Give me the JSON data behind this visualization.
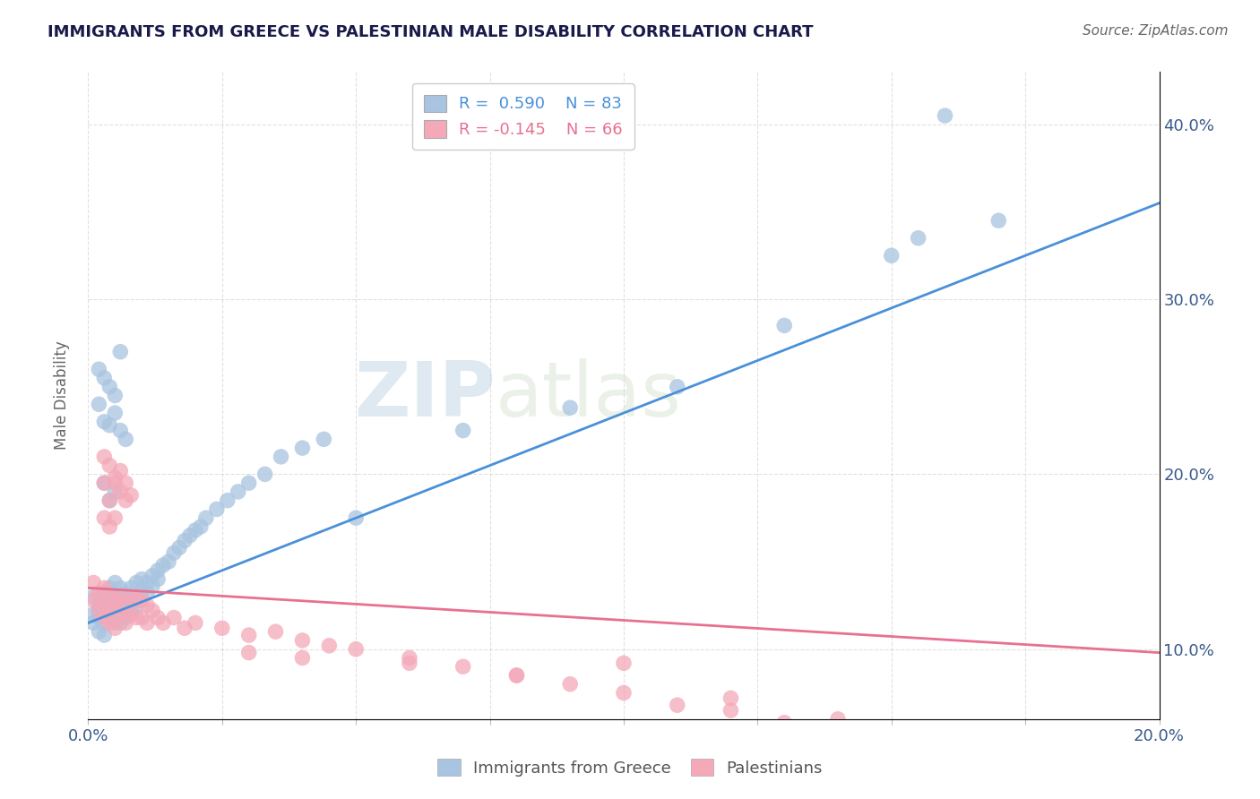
{
  "title": "IMMIGRANTS FROM GREECE VS PALESTINIAN MALE DISABILITY CORRELATION CHART",
  "source": "Source: ZipAtlas.com",
  "ylabel": "Male Disability",
  "legend_labels": [
    "Immigrants from Greece",
    "Palestinians"
  ],
  "r_blue": 0.59,
  "n_blue": 83,
  "r_pink": -0.145,
  "n_pink": 66,
  "xlim": [
    0.0,
    0.2
  ],
  "ylim": [
    0.06,
    0.43
  ],
  "xticks": [
    0.0,
    0.025,
    0.05,
    0.075,
    0.1,
    0.125,
    0.15,
    0.175,
    0.2
  ],
  "yticks": [
    0.1,
    0.2,
    0.3,
    0.4
  ],
  "grid_color": "#cccccc",
  "blue_color": "#a8c4e0",
  "pink_color": "#f4a8b8",
  "blue_line_color": "#4a90d9",
  "pink_line_color": "#e87090",
  "watermark_zip": "ZIP",
  "watermark_atlas": "atlas",
  "blue_line_x0": 0.0,
  "blue_line_y0": 0.115,
  "blue_line_x1": 0.2,
  "blue_line_y1": 0.355,
  "pink_line_x0": 0.0,
  "pink_line_y0": 0.135,
  "pink_line_x1": 0.2,
  "pink_line_y1": 0.098,
  "blue_scatter_x": [
    0.001,
    0.001,
    0.001,
    0.002,
    0.002,
    0.002,
    0.002,
    0.003,
    0.003,
    0.003,
    0.003,
    0.003,
    0.004,
    0.004,
    0.004,
    0.004,
    0.005,
    0.005,
    0.005,
    0.005,
    0.005,
    0.006,
    0.006,
    0.006,
    0.006,
    0.007,
    0.007,
    0.007,
    0.008,
    0.008,
    0.008,
    0.009,
    0.009,
    0.009,
    0.01,
    0.01,
    0.01,
    0.011,
    0.011,
    0.012,
    0.012,
    0.013,
    0.013,
    0.014,
    0.015,
    0.016,
    0.017,
    0.018,
    0.019,
    0.02,
    0.021,
    0.022,
    0.024,
    0.026,
    0.028,
    0.03,
    0.033,
    0.036,
    0.04,
    0.044,
    0.002,
    0.003,
    0.004,
    0.005,
    0.006,
    0.007,
    0.002,
    0.003,
    0.004,
    0.005,
    0.006,
    0.003,
    0.004,
    0.005,
    0.05,
    0.07,
    0.09,
    0.11,
    0.13,
    0.15,
    0.16,
    0.17,
    0.155
  ],
  "blue_scatter_y": [
    0.12,
    0.13,
    0.115,
    0.125,
    0.118,
    0.122,
    0.11,
    0.128,
    0.132,
    0.119,
    0.115,
    0.108,
    0.13,
    0.125,
    0.118,
    0.135,
    0.128,
    0.138,
    0.122,
    0.115,
    0.125,
    0.135,
    0.128,
    0.12,
    0.115,
    0.132,
    0.125,
    0.118,
    0.135,
    0.128,
    0.122,
    0.138,
    0.13,
    0.125,
    0.14,
    0.133,
    0.128,
    0.138,
    0.132,
    0.142,
    0.136,
    0.145,
    0.14,
    0.148,
    0.15,
    0.155,
    0.158,
    0.162,
    0.165,
    0.168,
    0.17,
    0.175,
    0.18,
    0.185,
    0.19,
    0.195,
    0.2,
    0.21,
    0.215,
    0.22,
    0.24,
    0.23,
    0.228,
    0.235,
    0.225,
    0.22,
    0.26,
    0.255,
    0.25,
    0.245,
    0.27,
    0.195,
    0.185,
    0.19,
    0.175,
    0.225,
    0.238,
    0.25,
    0.285,
    0.325,
    0.405,
    0.345,
    0.335
  ],
  "pink_scatter_x": [
    0.001,
    0.001,
    0.002,
    0.002,
    0.003,
    0.003,
    0.003,
    0.004,
    0.004,
    0.004,
    0.005,
    0.005,
    0.005,
    0.006,
    0.006,
    0.007,
    0.007,
    0.008,
    0.008,
    0.009,
    0.009,
    0.01,
    0.01,
    0.011,
    0.011,
    0.012,
    0.013,
    0.014,
    0.016,
    0.018,
    0.02,
    0.025,
    0.03,
    0.035,
    0.04,
    0.045,
    0.05,
    0.06,
    0.07,
    0.08,
    0.09,
    0.1,
    0.11,
    0.12,
    0.13,
    0.003,
    0.004,
    0.005,
    0.006,
    0.007,
    0.003,
    0.004,
    0.005,
    0.006,
    0.007,
    0.008,
    0.003,
    0.004,
    0.005,
    0.14,
    0.1,
    0.12,
    0.08,
    0.06,
    0.04,
    0.03
  ],
  "pink_scatter_y": [
    0.128,
    0.138,
    0.122,
    0.132,
    0.125,
    0.135,
    0.118,
    0.13,
    0.122,
    0.115,
    0.128,
    0.122,
    0.112,
    0.13,
    0.12,
    0.125,
    0.115,
    0.13,
    0.12,
    0.128,
    0.118,
    0.128,
    0.118,
    0.125,
    0.115,
    0.122,
    0.118,
    0.115,
    0.118,
    0.112,
    0.115,
    0.112,
    0.108,
    0.11,
    0.105,
    0.102,
    0.1,
    0.095,
    0.09,
    0.085,
    0.08,
    0.075,
    0.068,
    0.065,
    0.058,
    0.195,
    0.185,
    0.195,
    0.19,
    0.185,
    0.21,
    0.205,
    0.198,
    0.202,
    0.195,
    0.188,
    0.175,
    0.17,
    0.175,
    0.06,
    0.092,
    0.072,
    0.085,
    0.092,
    0.095,
    0.098
  ]
}
